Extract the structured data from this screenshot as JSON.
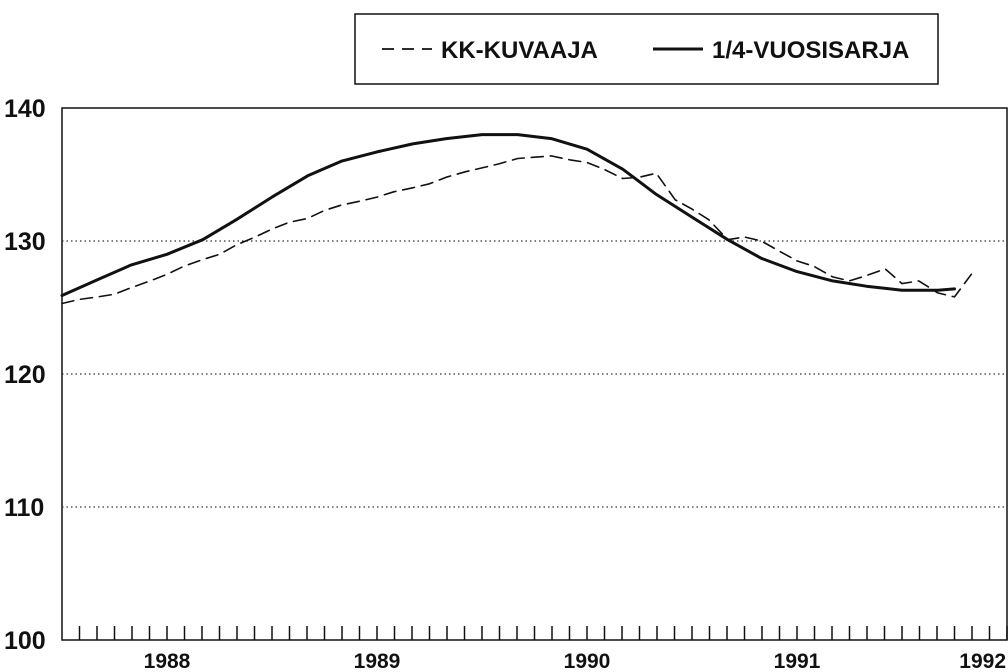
{
  "chart_data": {
    "type": "line",
    "title": "",
    "xlabel": "",
    "ylabel": "",
    "xlim": [
      1987.5,
      1992.0
    ],
    "ylim": [
      100,
      140
    ],
    "grid": {
      "y": true,
      "y_values": [
        110,
        120,
        130
      ],
      "style": "dotted"
    },
    "legend": {
      "placement": "top-right",
      "boxed": true
    },
    "y_ticks": [
      100,
      110,
      120,
      130,
      140
    ],
    "x_ticks": [
      {
        "value": 1988,
        "label": "1988"
      },
      {
        "value": 1989,
        "label": "1989"
      },
      {
        "value": 1990,
        "label": "1990"
      },
      {
        "value": 1991,
        "label": "1991"
      },
      {
        "value": 1992,
        "label": "1992"
      }
    ],
    "series": [
      {
        "name": "KK-KUVAAJA",
        "style": "dashed",
        "x": [
          1987.5,
          1987.58,
          1987.67,
          1987.75,
          1987.83,
          1987.92,
          1988.0,
          1988.08,
          1988.17,
          1988.25,
          1988.33,
          1988.42,
          1988.5,
          1988.58,
          1988.67,
          1988.75,
          1988.83,
          1988.92,
          1989.0,
          1989.08,
          1989.17,
          1989.25,
          1989.33,
          1989.42,
          1989.5,
          1989.58,
          1989.67,
          1989.75,
          1989.83,
          1989.92,
          1990.0,
          1990.08,
          1990.17,
          1990.25,
          1990.33,
          1990.42,
          1990.5,
          1990.58,
          1990.67,
          1990.75,
          1990.83,
          1990.92,
          1991.0,
          1991.08,
          1991.17,
          1991.25,
          1991.33,
          1991.42,
          1991.5,
          1991.58,
          1991.67,
          1991.75,
          1991.83
        ],
        "values": [
          125.3,
          125.6,
          125.8,
          126.0,
          126.5,
          127.0,
          127.5,
          128.1,
          128.6,
          129.0,
          129.7,
          130.3,
          130.9,
          131.4,
          131.7,
          132.3,
          132.7,
          133.0,
          133.3,
          133.7,
          134.0,
          134.3,
          134.8,
          135.2,
          135.5,
          135.8,
          136.2,
          136.3,
          136.4,
          136.1,
          135.9,
          135.4,
          134.7,
          134.8,
          135.1,
          133.1,
          132.4,
          131.6,
          130.1,
          130.3,
          130.0,
          129.2,
          128.5,
          128.1,
          127.3,
          127.0,
          127.4,
          127.9,
          126.8,
          127.0,
          126.1,
          125.8,
          127.5
        ]
      },
      {
        "name": "1/4-VUOSISARJA",
        "style": "solid",
        "x": [
          1987.5,
          1987.67,
          1987.83,
          1988.0,
          1988.17,
          1988.33,
          1988.5,
          1988.67,
          1988.83,
          1989.0,
          1989.17,
          1989.33,
          1989.5,
          1989.58,
          1989.67,
          1989.83,
          1990.0,
          1990.17,
          1990.33,
          1990.5,
          1990.67,
          1990.83,
          1991.0,
          1991.17,
          1991.33,
          1991.5,
          1991.67,
          1991.75
        ],
        "values": [
          125.9,
          127.1,
          128.2,
          129.0,
          130.1,
          131.6,
          133.3,
          134.9,
          136.0,
          136.7,
          137.3,
          137.7,
          138.0,
          138.0,
          138.0,
          137.7,
          136.9,
          135.4,
          133.5,
          131.8,
          130.1,
          128.7,
          127.7,
          127.0,
          126.6,
          126.3,
          126.3,
          126.4
        ]
      }
    ]
  }
}
